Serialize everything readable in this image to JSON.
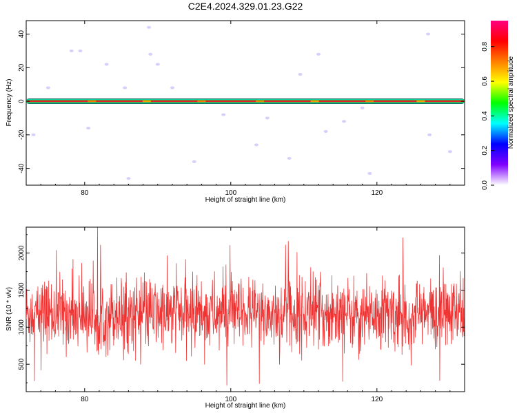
{
  "title": "C2E4.2024.329.01.23.G22",
  "chart_data": [
    {
      "type": "heatmap",
      "xlabel": "Height of straight line (km)",
      "ylabel": "Frequency (Hz)",
      "xlim": [
        72,
        132
      ],
      "ylim": [
        -50,
        48
      ],
      "xticks": [
        80,
        100,
        120
      ],
      "yticks": [
        40,
        20,
        0,
        -20,
        -40
      ],
      "band": {
        "center_frequency": 0,
        "half_width": 1.6
      },
      "colorbar": {
        "label": "Normalized spectral amplitude",
        "range": [
          0,
          0.95
        ],
        "ticks": [
          0.0,
          0.2,
          0.4,
          0.6,
          0.8
        ],
        "colors": [
          "#ffffff",
          "#8000ff",
          "#0000ff",
          "#00ffff",
          "#00ff00",
          "#ffff00",
          "#ff8000",
          "#ff0000",
          "#ff0080"
        ]
      },
      "speckles": [
        [
          78.2,
          30
        ],
        [
          79.4,
          30
        ],
        [
          83.0,
          22
        ],
        [
          85.5,
          8
        ],
        [
          88.8,
          44
        ],
        [
          89.0,
          28
        ],
        [
          90.0,
          22
        ],
        [
          92.0,
          8
        ],
        [
          95.0,
          -36
        ],
        [
          103.5,
          -26
        ],
        [
          105.0,
          -10
        ],
        [
          108.0,
          -34
        ],
        [
          112.0,
          28
        ],
        [
          113.0,
          -18
        ],
        [
          115.5,
          -12
        ],
        [
          119.0,
          -43
        ],
        [
          127.0,
          40
        ],
        [
          127.2,
          -20
        ],
        [
          130.0,
          -30
        ],
        [
          73.0,
          -20
        ],
        [
          75.0,
          8
        ],
        [
          80.5,
          -16
        ],
        [
          86.0,
          -46
        ],
        [
          99.0,
          -8
        ],
        [
          109.5,
          16
        ],
        [
          118.0,
          -4
        ]
      ]
    },
    {
      "type": "line",
      "xlabel": "Height of straight line (km)",
      "ylabel": "SNR (10 * v/v)",
      "xlim": [
        72,
        132
      ],
      "ylim": [
        130,
        2350
      ],
      "xticks": [
        80,
        100,
        120
      ],
      "yticks": [
        500,
        1000,
        1500,
        2000
      ],
      "color": "#ee3333",
      "mean": 1180,
      "spread": 240,
      "n_points": 1500
    }
  ]
}
